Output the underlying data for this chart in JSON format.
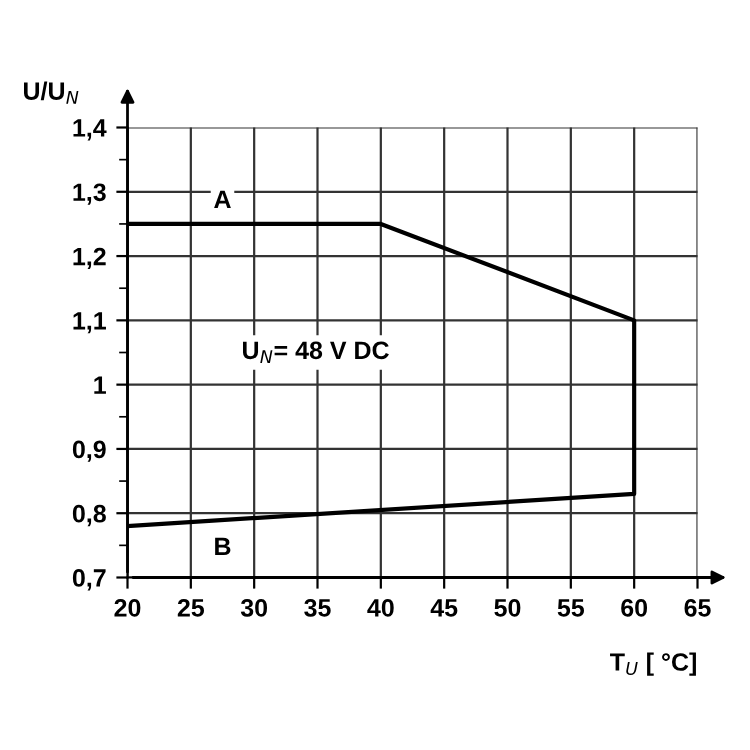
{
  "chart_data": {
    "type": "line",
    "xlabel": "T$_{U}$ [ °C]",
    "ylabel": "U/U$_{N}$",
    "x": [
      20,
      40,
      60,
      60,
      20
    ],
    "series": [
      {
        "color": "#000000",
        "values": [
          1.25,
          1.25,
          1.1,
          0.83,
          0.78
        ]
      }
    ],
    "annotations": [
      {
        "text": "A",
        "x": 27.5,
        "y": 1.25
      },
      {
        "text": "B",
        "x": 27.5,
        "y": 0.79
      },
      "U$_{N}$= 48 V DC"
    ],
    "xlim": [
      20,
      65
    ],
    "xticks": [
      20,
      25,
      30,
      35,
      40,
      45,
      50,
      55,
      60,
      65
    ],
    "ylim": [
      0.7,
      1.4
    ],
    "yticks": [
      {
        "value": 0.7,
        "label": "0,7"
      },
      {
        "value": 0.75,
        "label": null
      },
      {
        "value": 0.8,
        "label": "0,8"
      },
      {
        "value": 0.85,
        "label": null
      },
      {
        "value": 0.9,
        "label": "0,9"
      },
      {
        "value": 0.95,
        "label": null
      },
      {
        "value": 1,
        "label": "1"
      },
      {
        "value": 1.05,
        "label": null
      },
      {
        "value": 1.1,
        "label": "1,1"
      },
      {
        "value": 1.15,
        "label": null
      },
      {
        "value": 1.2,
        "label": "1,2"
      },
      {
        "value": 1.25,
        "label": null
      },
      {
        "value": 1.3,
        "label": "1,3"
      },
      {
        "value": 1.35,
        "label": null
      },
      {
        "value": 1.4,
        "label": "1,4"
      }
    ],
    "grid": true,
    "marker": "none",
    "line_style": "solid"
  }
}
